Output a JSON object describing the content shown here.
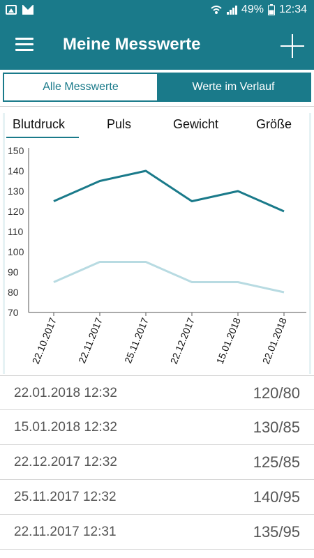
{
  "status_bar": {
    "battery": "49%",
    "time": "12:34",
    "icons": [
      "image-icon",
      "mail-icon",
      "wifi-icon",
      "signal-icon",
      "battery-icon"
    ]
  },
  "app_bar": {
    "title": "Meine Messwerte",
    "menu_icon": "hamburger-menu-icon",
    "add_icon": "plus-icon"
  },
  "segment": {
    "left_label": "Alle Messwerte",
    "right_label": "Werte im Verlauf",
    "selected": "right"
  },
  "chart_tabs": {
    "items": [
      "Blutdruck",
      "Puls",
      "Gewicht",
      "Größe"
    ],
    "selected": "Blutdruck"
  },
  "chart_data": {
    "type": "line",
    "categories": [
      "22.10.2017",
      "22.11.2017",
      "25.11.2017",
      "22.12.2017",
      "15.01.2018",
      "22.01.2018"
    ],
    "series": [
      {
        "values": [
          125,
          135,
          140,
          125,
          130,
          120
        ],
        "color": "#1a7a8a"
      },
      {
        "values": [
          85,
          95,
          95,
          85,
          85,
          80
        ],
        "color": "#b8dbe2"
      }
    ],
    "ylim": [
      70,
      150
    ],
    "yticks": [
      150,
      140,
      130,
      120,
      110,
      100,
      90,
      80,
      70
    ],
    "grid": false
  },
  "entries": [
    {
      "date": "22.01.2018 12:32",
      "value": "120/80"
    },
    {
      "date": "15.01.2018 12:32",
      "value": "130/85"
    },
    {
      "date": "22.12.2017 12:32",
      "value": "125/85"
    },
    {
      "date": "25.11.2017 12:32",
      "value": "140/95"
    },
    {
      "date": "22.11.2017 12:31",
      "value": "135/95"
    }
  ]
}
